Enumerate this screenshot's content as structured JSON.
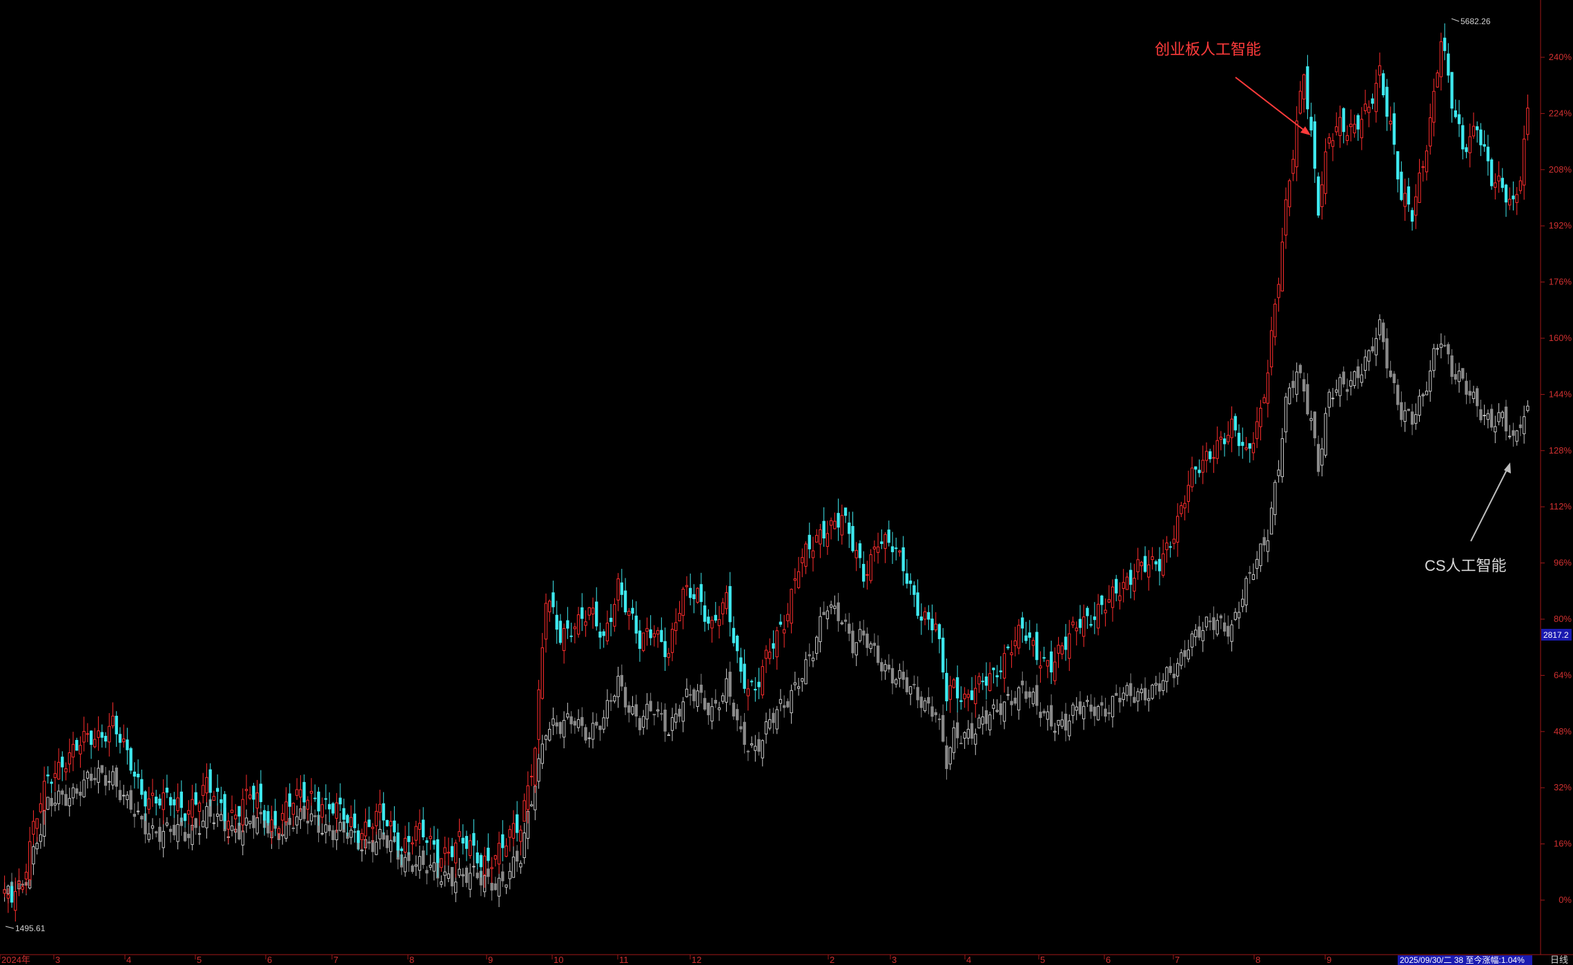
{
  "chart_data": {
    "type": "candlestick",
    "period_label": "日线",
    "annotations": {
      "red_series_label": "创业板人工智能",
      "gray_series_label": "CS人工智能"
    },
    "y_axis": {
      "unit": "percent",
      "ticks": [
        "0%",
        "16%",
        "32%",
        "48%",
        "64%",
        "80%",
        "96%",
        "112%",
        "128%",
        "144%",
        "160%",
        "176%",
        "192%",
        "208%",
        "224%",
        "240%"
      ],
      "ylim": [
        -4,
        251
      ]
    },
    "x_axis": {
      "ticks": [
        "2024年",
        "3",
        "4",
        "5",
        "6",
        "7",
        "8",
        "9",
        "10",
        "11",
        "12",
        "2",
        "3",
        "4",
        "5",
        "6",
        "7",
        "8",
        "9",
        "日线"
      ]
    },
    "extremes": {
      "high_label": "5682.26",
      "low_label": "1495.61"
    },
    "last_value_tag": "2817.2",
    "status_text": "2025/09/30/二 38 至今涨幅:1.04%",
    "series": [
      {
        "name": "创业板人工智能",
        "color_up": "#ff2d2d",
        "color_down": "#3ee8ee",
        "key_points": [
          [
            0,
            0
          ],
          [
            5,
            6
          ],
          [
            8,
            20
          ],
          [
            12,
            34
          ],
          [
            16,
            40
          ],
          [
            21,
            44
          ],
          [
            26,
            47
          ],
          [
            30,
            51
          ],
          [
            34,
            40
          ],
          [
            38,
            31
          ],
          [
            44,
            28
          ],
          [
            50,
            26
          ],
          [
            56,
            32
          ],
          [
            62,
            24
          ],
          [
            68,
            30
          ],
          [
            74,
            22
          ],
          [
            80,
            28
          ],
          [
            86,
            30
          ],
          [
            92,
            25
          ],
          [
            98,
            20
          ],
          [
            104,
            24
          ],
          [
            110,
            16
          ],
          [
            114,
            20
          ],
          [
            120,
            13
          ],
          [
            126,
            17
          ],
          [
            132,
            11
          ],
          [
            138,
            15
          ],
          [
            143,
            21
          ],
          [
            147,
            45
          ],
          [
            150,
            86
          ],
          [
            154,
            74
          ],
          [
            158,
            80
          ],
          [
            162,
            82
          ],
          [
            166,
            73
          ],
          [
            170,
            91
          ],
          [
            173,
            82
          ],
          [
            176,
            72
          ],
          [
            180,
            78
          ],
          [
            184,
            71
          ],
          [
            188,
            86
          ],
          [
            192,
            88
          ],
          [
            196,
            78
          ],
          [
            200,
            84
          ],
          [
            204,
            65
          ],
          [
            208,
            60
          ],
          [
            212,
            70
          ],
          [
            216,
            80
          ],
          [
            220,
            96
          ],
          [
            224,
            100
          ],
          [
            228,
            107
          ],
          [
            232,
            110
          ],
          [
            235,
            100
          ],
          [
            238,
            92
          ],
          [
            242,
            104
          ],
          [
            246,
            100
          ],
          [
            250,
            92
          ],
          [
            254,
            82
          ],
          [
            258,
            77
          ],
          [
            261,
            58
          ],
          [
            263,
            62
          ],
          [
            266,
            58
          ],
          [
            270,
            60
          ],
          [
            274,
            64
          ],
          [
            278,
            72
          ],
          [
            282,
            76
          ],
          [
            286,
            70
          ],
          [
            290,
            68
          ],
          [
            294,
            72
          ],
          [
            298,
            80
          ],
          [
            302,
            82
          ],
          [
            306,
            84
          ],
          [
            310,
            90
          ],
          [
            314,
            96
          ],
          [
            318,
            94
          ],
          [
            320,
            95
          ],
          [
            324,
            106
          ],
          [
            328,
            118
          ],
          [
            332,
            124
          ],
          [
            336,
            131
          ],
          [
            340,
            134
          ],
          [
            344,
            126
          ],
          [
            348,
            140
          ],
          [
            350,
            152
          ],
          [
            353,
            176
          ],
          [
            355,
            196
          ],
          [
            358,
            222
          ],
          [
            360,
            238
          ],
          [
            362,
            218
          ],
          [
            364,
            196
          ],
          [
            367,
            216
          ],
          [
            370,
            222
          ],
          [
            374,
            220
          ],
          [
            378,
            224
          ],
          [
            381,
            236
          ],
          [
            384,
            222
          ],
          [
            387,
            200
          ],
          [
            390,
            194
          ],
          [
            393,
            210
          ],
          [
            396,
            230
          ],
          [
            398,
            246
          ],
          [
            401,
            226
          ],
          [
            404,
            214
          ],
          [
            408,
            222
          ],
          [
            412,
            204
          ],
          [
            415,
            202
          ],
          [
            418,
            199
          ],
          [
            420,
            208
          ],
          [
            422,
            224
          ]
        ]
      },
      {
        "name": "CS人工智能",
        "color_up": "#c8c8c8",
        "color_down": "#8a8a8a",
        "key_points": [
          [
            0,
            0
          ],
          [
            5,
            5
          ],
          [
            8,
            14
          ],
          [
            12,
            26
          ],
          [
            16,
            30
          ],
          [
            21,
            32
          ],
          [
            26,
            35
          ],
          [
            30,
            36
          ],
          [
            34,
            27
          ],
          [
            38,
            21
          ],
          [
            44,
            20
          ],
          [
            50,
            18
          ],
          [
            56,
            25
          ],
          [
            62,
            19
          ],
          [
            68,
            23
          ],
          [
            74,
            19
          ],
          [
            80,
            23
          ],
          [
            86,
            22
          ],
          [
            92,
            20
          ],
          [
            98,
            16
          ],
          [
            104,
            18
          ],
          [
            110,
            11
          ],
          [
            114,
            12
          ],
          [
            120,
            6
          ],
          [
            126,
            8
          ],
          [
            132,
            5
          ],
          [
            138,
            6
          ],
          [
            143,
            11
          ],
          [
            147,
            35
          ],
          [
            150,
            50
          ],
          [
            154,
            48
          ],
          [
            158,
            52
          ],
          [
            162,
            48
          ],
          [
            166,
            50
          ],
          [
            170,
            63
          ],
          [
            173,
            56
          ],
          [
            176,
            50
          ],
          [
            180,
            54
          ],
          [
            184,
            50
          ],
          [
            188,
            56
          ],
          [
            192,
            58
          ],
          [
            196,
            55
          ],
          [
            200,
            60
          ],
          [
            204,
            46
          ],
          [
            208,
            44
          ],
          [
            212,
            50
          ],
          [
            216,
            55
          ],
          [
            220,
            64
          ],
          [
            224,
            70
          ],
          [
            228,
            84
          ],
          [
            232,
            82
          ],
          [
            235,
            72
          ],
          [
            238,
            74
          ],
          [
            242,
            70
          ],
          [
            246,
            64
          ],
          [
            250,
            60
          ],
          [
            254,
            58
          ],
          [
            258,
            54
          ],
          [
            261,
            38
          ],
          [
            263,
            46
          ],
          [
            266,
            48
          ],
          [
            270,
            50
          ],
          [
            274,
            52
          ],
          [
            278,
            58
          ],
          [
            282,
            60
          ],
          [
            286,
            54
          ],
          [
            290,
            52
          ],
          [
            294,
            50
          ],
          [
            298,
            54
          ],
          [
            302,
            56
          ],
          [
            306,
            54
          ],
          [
            310,
            58
          ],
          [
            314,
            60
          ],
          [
            318,
            59
          ],
          [
            320,
            60
          ],
          [
            324,
            66
          ],
          [
            328,
            74
          ],
          [
            332,
            76
          ],
          [
            336,
            80
          ],
          [
            340,
            78
          ],
          [
            344,
            88
          ],
          [
            348,
            100
          ],
          [
            350,
            106
          ],
          [
            353,
            124
          ],
          [
            355,
            140
          ],
          [
            358,
            150
          ],
          [
            360,
            146
          ],
          [
            362,
            138
          ],
          [
            364,
            124
          ],
          [
            367,
            142
          ],
          [
            370,
            146
          ],
          [
            374,
            150
          ],
          [
            378,
            154
          ],
          [
            381,
            162
          ],
          [
            384,
            150
          ],
          [
            387,
            140
          ],
          [
            390,
            136
          ],
          [
            393,
            142
          ],
          [
            396,
            156
          ],
          [
            398,
            162
          ],
          [
            401,
            150
          ],
          [
            404,
            146
          ],
          [
            408,
            142
          ],
          [
            412,
            136
          ],
          [
            415,
            136
          ],
          [
            418,
            130
          ],
          [
            420,
            138
          ],
          [
            422,
            140
          ]
        ]
      }
    ]
  }
}
